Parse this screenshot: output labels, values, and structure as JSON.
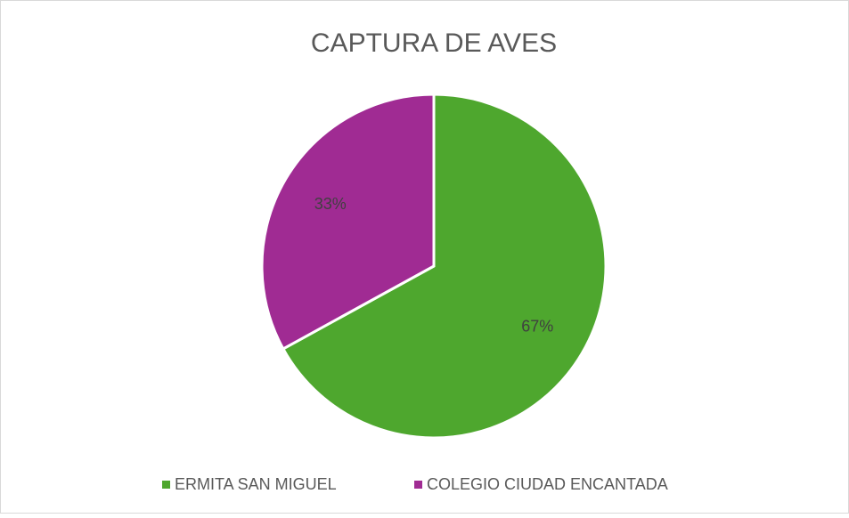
{
  "chart_data": {
    "type": "pie",
    "title": "CAPTURA DE AVES",
    "categories": [
      "ERMITA SAN MIGUEL",
      "COLEGIO CIUDAD ENCANTADA"
    ],
    "values": [
      67,
      33
    ],
    "value_labels": [
      "67%",
      "33%"
    ],
    "colors": [
      "#4ea72e",
      "#a02b93"
    ],
    "legend": "bottom"
  }
}
